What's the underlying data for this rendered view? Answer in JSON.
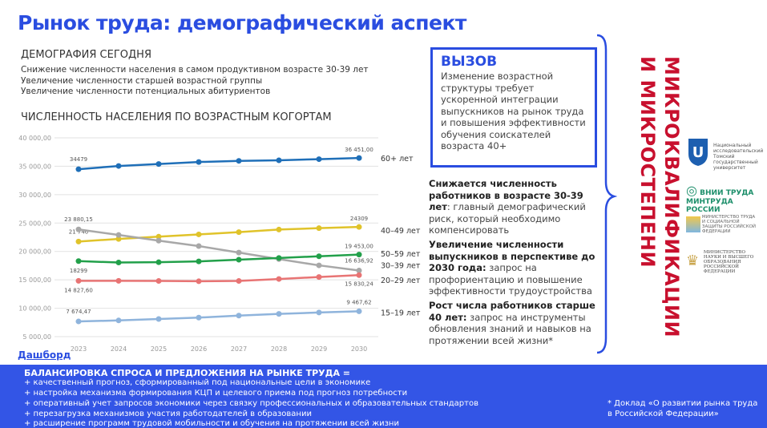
{
  "title": "Рынок труда: демографический аспект",
  "demography": {
    "heading": "ДЕМОГРАФИЯ СЕГОДНЯ",
    "lines": [
      "Снижение численности населения в самом продуктивном возрасте 30-39 лет",
      "Увеличение численности старшей возрастной группы",
      "Увеличение численности потенциальных абитуриентов"
    ]
  },
  "chart_title": "ЧИСЛЕННОСТЬ НАСЕЛЕНИЯ ПО ВОЗРАСТНЫМ КОГОРТАМ",
  "dashboard_link": "Дашборд",
  "chart_data": {
    "type": "line",
    "title": "ЧИСЛЕННОСТЬ НАСЕЛЕНИЯ ПО ВОЗРАСТНЫМ КОГОРТАМ",
    "x": [
      "2023",
      "2024",
      "2025",
      "2026",
      "2027",
      "2028",
      "2029",
      "2030"
    ],
    "ylim": [
      5000,
      40000
    ],
    "yticks": [
      "5 000,00",
      "10 000,00",
      "15 000,00",
      "20 000,00",
      "25 000,00",
      "30 000,00",
      "35 000,00",
      "40 000,00"
    ],
    "grid": true,
    "series": [
      {
        "name": "60+ лет",
        "color": "#1f6fb8",
        "values": [
          34479,
          35050,
          35400,
          35750,
          35950,
          36050,
          36250,
          36451
        ],
        "first_label": "34479",
        "last_label": "36 451,00"
      },
      {
        "name": "40–49 лет",
        "color": "#e0c32a",
        "values": [
          21746,
          22200,
          22600,
          23000,
          23400,
          23850,
          24100,
          24309
        ],
        "first_label": "21 746",
        "last_label": "24309"
      },
      {
        "name": "30–39 лет",
        "color": "#a8a8a8",
        "values": [
          23880.15,
          22900,
          21900,
          20950,
          19800,
          18650,
          17550,
          16636.92
        ],
        "first_label": "23 880,15",
        "last_label": "16 636,92"
      },
      {
        "name": "50–59 лет",
        "color": "#22a04a",
        "values": [
          18299,
          18050,
          18100,
          18250,
          18550,
          18850,
          19150,
          19453
        ],
        "first_label": "18299",
        "last_label": "19 453,00"
      },
      {
        "name": "20–29 лет",
        "color": "#e87474",
        "values": [
          14827.6,
          14830,
          14800,
          14750,
          14800,
          15150,
          15500,
          15830.24
        ],
        "first_label": "14 827,60",
        "last_label": "15 830,24"
      },
      {
        "name": "15–19 лет",
        "color": "#8fb4dc",
        "values": [
          7674.47,
          7850,
          8100,
          8350,
          8700,
          9000,
          9250,
          9467.62
        ],
        "first_label": "7 674,47",
        "last_label": "9 467,62"
      }
    ]
  },
  "challenge": {
    "heading": "ВЫЗОВ",
    "text": "Изменение возрастной структуры требует ускоренной интеграции выпускников на рынок труда и повышения эффективности обучения соискателей возраста 40+"
  },
  "points": [
    {
      "bold": "Снижается численность работников в возрасте 30-39 лет",
      "text": ": главный демографический риск, который необходимо компенсировать"
    },
    {
      "bold": "Увеличение численности выпускников в перспективе до 2030 года:",
      "text": " запрос на профориентацию и повышение эффективности трудоустройства"
    },
    {
      "bold": "Рост числа работников старше 40 лет:",
      "text": " запрос на инструменты обновления знаний и навыков на протяжении всей жизни*"
    }
  ],
  "vertical_text": "МИКРОКВАЛИФИКАЦИИ И МИКРОСТЕПЕНИ",
  "logos": [
    "Национальный исследовательский Томский государственный университет",
    "ВНИИ ТРУДА МИНТРУДА РОССИИ",
    "МИНИСТЕРСТВО ТРУДА И СОЦИАЛЬНОЙ ЗАЩИТЫ РОССИЙСКОЙ ФЕДЕРАЦИИ",
    "МИНИСТЕРСТВО НАУКИ И ВЫСШЕГО ОБРАЗОВАНИЯ РОССИЙСКОЙ ФЕДЕРАЦИИ"
  ],
  "band": {
    "title": "БАЛАНСИРОВКА СПРОСА И ПРЕДЛОЖЕНИЯ НА РЫНКЕ ТРУДА =",
    "items": [
      "+ качественный прогноз, сформированный под национальные цели в экономике",
      "+ настройка механизма формирования КЦП и целевого приема под прогноз потребности",
      "+ оперативный учет запросов экономики через связку профессиональных и образовательных стандартов",
      "+ перезагрузка механизмов участия работодателей в образовании",
      "+ расширение программ трудовой мобильности и обучения на протяжении всей жизни"
    ],
    "footnote": "* Доклад «О развитии рынка труда в Российской Федерации»"
  }
}
